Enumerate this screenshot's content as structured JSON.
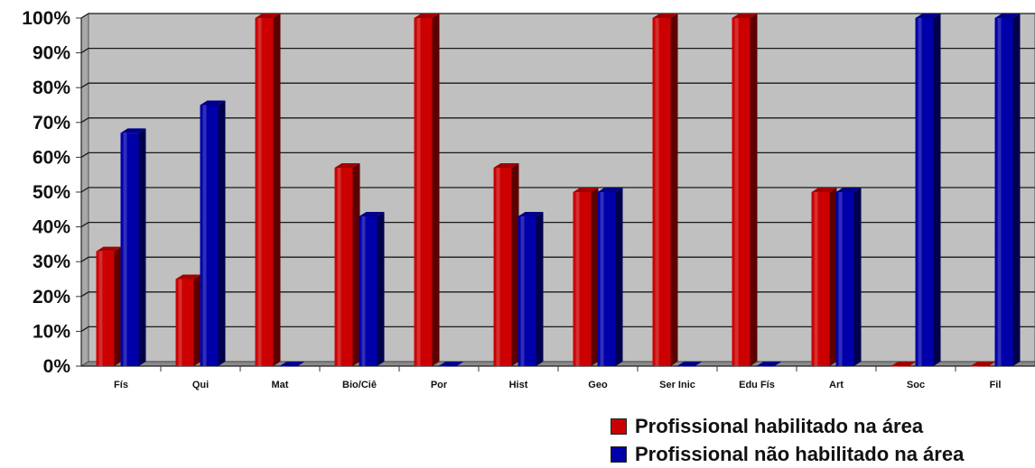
{
  "chart_data": {
    "type": "bar",
    "categories": [
      "Fís",
      "Qui",
      "Mat",
      "Bio/Ciê",
      "Por",
      "Hist",
      "Geo",
      "Ser Inic",
      "Edu Fís",
      "Art",
      "Soc",
      "Fil"
    ],
    "series": [
      {
        "name": "Profissional habilitado na área",
        "color": "#cc0000",
        "values": [
          33,
          25,
          100,
          57,
          100,
          57,
          50,
          100,
          100,
          50,
          0,
          0
        ]
      },
      {
        "name": "Profissional não habilitado na área",
        "color": "#0000aa",
        "values": [
          67,
          75,
          0,
          43,
          0,
          43,
          50,
          0,
          0,
          50,
          100,
          100
        ]
      }
    ],
    "yticks": [
      "0%",
      "10%",
      "20%",
      "30%",
      "40%",
      "50%",
      "60%",
      "70%",
      "80%",
      "90%",
      "100%"
    ],
    "ylim": [
      0,
      100
    ],
    "grid": true,
    "legend_position": "bottom-right",
    "plot_background": "#c0c0c0"
  }
}
